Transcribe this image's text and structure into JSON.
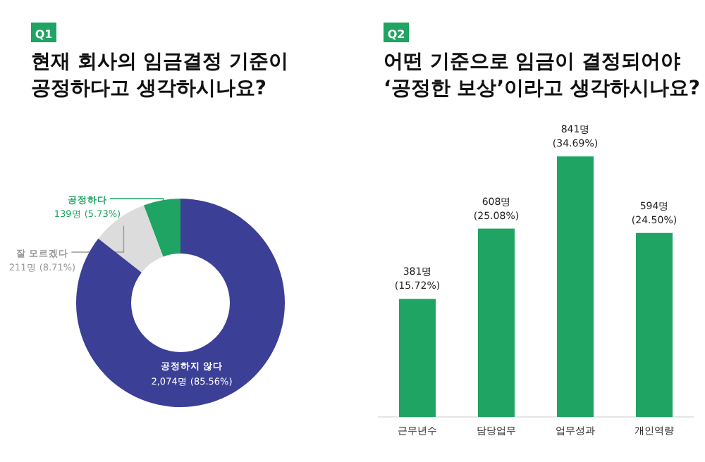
{
  "chart_data": [
    {
      "type": "donut",
      "subtitle": "Q1",
      "title": "현재 회사의 임금결정 기준이\n공정하다고 생각하시나요?",
      "categories": [
        "공정하다",
        "잘 모르겠다",
        "공정하지 않다"
      ],
      "values": [
        139,
        211,
        2074
      ],
      "colors": [
        "#1fa463",
        "#dcdcdc",
        "#3c3f96"
      ],
      "value_labels": [
        "139명 (5.73%)",
        "211명 (8.71%)",
        "2,074명 (85.56%)"
      ]
    },
    {
      "type": "bar",
      "subtitle": "Q2",
      "title": "어떤 기준으로 임금이 결정되어야\n‘공정한 보상’이라고 생각하시나요?",
      "categories": [
        "근무년수",
        "담당업무",
        "업무성과",
        "개인역량"
      ],
      "values": [
        381,
        608,
        841,
        594
      ],
      "color": "#1fa463",
      "value_labels": [
        "381명\n(15.72%)",
        "608명\n(25.08%)",
        "841명\n(34.69%)",
        "594명\n(24.50%)"
      ]
    }
  ]
}
